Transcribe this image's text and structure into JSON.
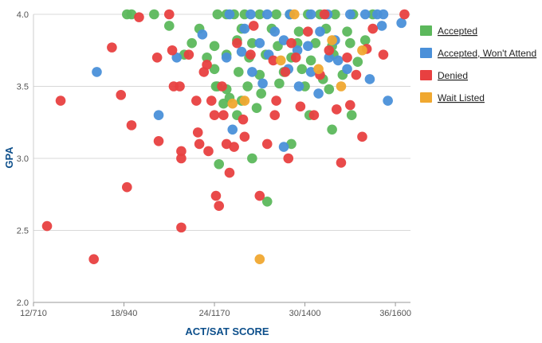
{
  "chart_data": {
    "type": "scatter",
    "xlabel": "ACT/SAT SCORE",
    "ylabel": "GPA",
    "x_domain": [
      12,
      37
    ],
    "xlim": [
      12,
      37
    ],
    "ylim": [
      2.0,
      4.0
    ],
    "x_ticks": [
      {
        "value": 12,
        "label": "12/710"
      },
      {
        "value": 18,
        "label": "18/940"
      },
      {
        "value": 24,
        "label": "24/1170"
      },
      {
        "value": 30,
        "label": "30/1400"
      },
      {
        "value": 36,
        "label": "36/1600"
      }
    ],
    "y_ticks": [
      {
        "value": 2.0,
        "label": "2.0"
      },
      {
        "value": 2.5,
        "label": "2.5"
      },
      {
        "value": 3.0,
        "label": "3.0"
      },
      {
        "value": 3.5,
        "label": "3.5"
      },
      {
        "value": 4.0,
        "label": "4.0"
      }
    ],
    "grid": true,
    "legend_position": "right",
    "series": [
      {
        "name": "Accepted",
        "color": "#5cb85c",
        "points": [
          [
            18.2,
            4.0
          ],
          [
            18.5,
            4.0
          ],
          [
            20.0,
            4.0
          ],
          [
            24.2,
            4.0
          ],
          [
            24.8,
            4.0
          ],
          [
            25.3,
            4.0
          ],
          [
            26.0,
            4.0
          ],
          [
            27.0,
            4.0
          ],
          [
            28.1,
            4.0
          ],
          [
            29.0,
            4.0
          ],
          [
            30.2,
            4.0
          ],
          [
            31.0,
            4.0
          ],
          [
            32.0,
            4.0
          ],
          [
            33.2,
            4.0
          ],
          [
            34.5,
            4.0
          ],
          [
            21.0,
            3.92
          ],
          [
            23.0,
            3.9
          ],
          [
            25.8,
            3.9
          ],
          [
            27.8,
            3.9
          ],
          [
            29.6,
            3.88
          ],
          [
            31.4,
            3.9
          ],
          [
            32.8,
            3.88
          ],
          [
            22.5,
            3.8
          ],
          [
            24.0,
            3.78
          ],
          [
            25.5,
            3.82
          ],
          [
            26.5,
            3.8
          ],
          [
            28.2,
            3.78
          ],
          [
            29.5,
            3.8
          ],
          [
            30.7,
            3.8
          ],
          [
            31.8,
            3.78
          ],
          [
            33.0,
            3.8
          ],
          [
            34.0,
            3.82
          ],
          [
            22.0,
            3.72
          ],
          [
            23.5,
            3.7
          ],
          [
            24.8,
            3.72
          ],
          [
            26.3,
            3.7
          ],
          [
            27.4,
            3.72
          ],
          [
            29.1,
            3.7
          ],
          [
            30.4,
            3.68
          ],
          [
            31.9,
            3.72
          ],
          [
            33.5,
            3.67
          ],
          [
            24.0,
            3.62
          ],
          [
            25.6,
            3.6
          ],
          [
            27.0,
            3.58
          ],
          [
            28.6,
            3.6
          ],
          [
            29.8,
            3.62
          ],
          [
            31.2,
            3.55
          ],
          [
            32.5,
            3.58
          ],
          [
            24.1,
            3.5
          ],
          [
            24.8,
            3.48
          ],
          [
            26.2,
            3.5
          ],
          [
            27.1,
            3.45
          ],
          [
            28.3,
            3.52
          ],
          [
            30.0,
            3.5
          ],
          [
            31.6,
            3.48
          ],
          [
            25.0,
            3.42
          ],
          [
            25.8,
            3.4
          ],
          [
            24.6,
            3.38
          ],
          [
            26.8,
            3.35
          ],
          [
            29.1,
            3.1
          ],
          [
            30.3,
            3.3
          ],
          [
            31.8,
            3.2
          ],
          [
            33.1,
            3.3
          ],
          [
            24.3,
            2.96
          ],
          [
            26.5,
            3.0
          ],
          [
            27.5,
            2.7
          ],
          [
            24.2,
            3.5
          ],
          [
            25.5,
            3.3
          ]
        ]
      },
      {
        "name": "Accepted, Won't Attend",
        "color": "#4a90d9",
        "points": [
          [
            25.0,
            4.0
          ],
          [
            26.4,
            4.0
          ],
          [
            27.5,
            4.0
          ],
          [
            29.0,
            4.0
          ],
          [
            30.4,
            4.0
          ],
          [
            31.5,
            4.0
          ],
          [
            33.0,
            4.0
          ],
          [
            34.0,
            4.0
          ],
          [
            34.8,
            4.0
          ],
          [
            35.2,
            4.0
          ],
          [
            26.0,
            3.9
          ],
          [
            28.0,
            3.88
          ],
          [
            31.0,
            3.88
          ],
          [
            35.1,
            3.92
          ],
          [
            36.4,
            3.94
          ],
          [
            27.0,
            3.8
          ],
          [
            28.6,
            3.82
          ],
          [
            30.2,
            3.78
          ],
          [
            32.0,
            3.82
          ],
          [
            23.2,
            3.86
          ],
          [
            25.8,
            3.74
          ],
          [
            27.6,
            3.72
          ],
          [
            29.5,
            3.75
          ],
          [
            31.6,
            3.7
          ],
          [
            24.8,
            3.7
          ],
          [
            26.5,
            3.6
          ],
          [
            28.9,
            3.62
          ],
          [
            30.4,
            3.6
          ],
          [
            32.8,
            3.62
          ],
          [
            16.2,
            3.6
          ],
          [
            27.2,
            3.52
          ],
          [
            29.6,
            3.5
          ],
          [
            34.3,
            3.55
          ],
          [
            21.5,
            3.7
          ],
          [
            20.3,
            3.3
          ],
          [
            25.2,
            3.2
          ],
          [
            28.6,
            3.08
          ],
          [
            35.5,
            3.4
          ],
          [
            30.9,
            3.45
          ],
          [
            32.2,
            3.68
          ]
        ]
      },
      {
        "name": "Denied",
        "color": "#e84040",
        "points": [
          [
            13.8,
            3.4
          ],
          [
            12.9,
            2.53
          ],
          [
            16.0,
            2.3
          ],
          [
            17.2,
            3.77
          ],
          [
            17.8,
            3.44
          ],
          [
            18.5,
            3.23
          ],
          [
            18.2,
            2.8
          ],
          [
            19.0,
            3.98
          ],
          [
            20.2,
            3.7
          ],
          [
            20.3,
            3.12
          ],
          [
            21.0,
            4.0
          ],
          [
            21.2,
            3.75
          ],
          [
            21.3,
            3.5
          ],
          [
            21.7,
            3.5
          ],
          [
            21.8,
            3.05
          ],
          [
            21.8,
            3.0
          ],
          [
            21.8,
            2.52
          ],
          [
            22.3,
            3.72
          ],
          [
            22.8,
            3.4
          ],
          [
            22.9,
            3.18
          ],
          [
            23.0,
            3.1
          ],
          [
            23.3,
            3.6
          ],
          [
            23.5,
            3.65
          ],
          [
            23.6,
            3.05
          ],
          [
            23.8,
            3.4
          ],
          [
            24.0,
            3.3
          ],
          [
            24.1,
            2.74
          ],
          [
            24.3,
            2.67
          ],
          [
            24.5,
            3.5
          ],
          [
            24.6,
            3.3
          ],
          [
            24.8,
            3.1
          ],
          [
            25.0,
            2.9
          ],
          [
            25.3,
            3.08
          ],
          [
            25.5,
            3.8
          ],
          [
            25.9,
            3.27
          ],
          [
            26.0,
            3.15
          ],
          [
            26.4,
            3.72
          ],
          [
            26.6,
            3.92
          ],
          [
            27.0,
            2.74
          ],
          [
            27.5,
            3.1
          ],
          [
            27.9,
            3.68
          ],
          [
            28.0,
            3.3
          ],
          [
            28.1,
            3.4
          ],
          [
            28.7,
            3.6
          ],
          [
            28.9,
            3.0
          ],
          [
            29.1,
            3.8
          ],
          [
            29.4,
            3.7
          ],
          [
            29.7,
            3.36
          ],
          [
            30.2,
            3.88
          ],
          [
            30.6,
            3.3
          ],
          [
            31.0,
            3.58
          ],
          [
            31.3,
            4.0
          ],
          [
            31.6,
            3.75
          ],
          [
            32.1,
            3.34
          ],
          [
            32.4,
            2.97
          ],
          [
            32.8,
            3.7
          ],
          [
            33.0,
            3.37
          ],
          [
            33.4,
            3.58
          ],
          [
            33.8,
            3.15
          ],
          [
            34.1,
            3.76
          ],
          [
            34.5,
            3.9
          ],
          [
            35.2,
            3.72
          ],
          [
            36.6,
            4.0
          ]
        ]
      },
      {
        "name": "Wait Listed",
        "color": "#f0a830",
        "points": [
          [
            27.0,
            2.3
          ],
          [
            29.3,
            4.0
          ],
          [
            31.8,
            3.82
          ],
          [
            32.4,
            3.5
          ],
          [
            33.8,
            3.75
          ],
          [
            26.0,
            3.4
          ],
          [
            28.4,
            3.68
          ],
          [
            25.2,
            3.38
          ],
          [
            30.9,
            3.62
          ]
        ]
      }
    ]
  }
}
